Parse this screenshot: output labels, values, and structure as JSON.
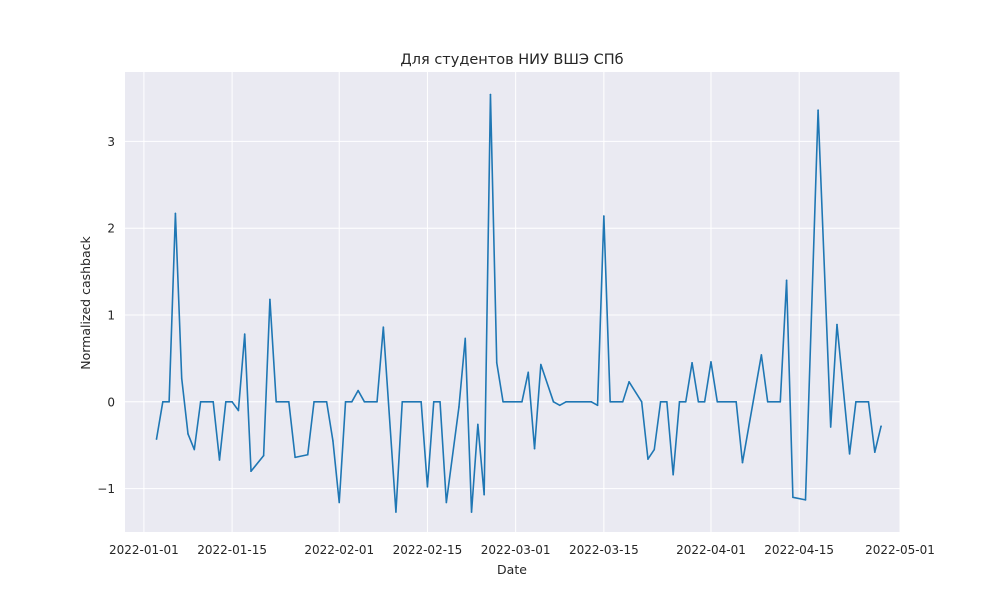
{
  "chart_data": {
    "type": "line",
    "title": "Для студентов НИУ ВШЭ СПб",
    "xlabel": "Date",
    "ylabel": "Normalized cashback",
    "x_ticks": [
      "2022-01-01",
      "2022-01-15",
      "2022-02-01",
      "2022-02-15",
      "2022-03-01",
      "2022-03-15",
      "2022-04-01",
      "2022-04-15",
      "2022-05-01"
    ],
    "y_ticks": [
      3,
      2,
      1,
      0,
      -1
    ],
    "y_tick_labels": [
      "3",
      "2",
      "1",
      "0",
      "−1"
    ],
    "xlim": [
      "2021-12-29",
      "2022-05-01"
    ],
    "ylim": [
      -1.5,
      3.8
    ],
    "grid": true,
    "background_color": "#eaeaf2",
    "grid_color": "#ffffff",
    "line_color": "#1f77b4",
    "series": [
      {
        "points": [
          [
            "2022-01-03",
            -0.43
          ],
          [
            "2022-01-04",
            0.0
          ],
          [
            "2022-01-05",
            0.0
          ],
          [
            "2022-01-06",
            2.17
          ],
          [
            "2022-01-07",
            0.27
          ],
          [
            "2022-01-08",
            -0.37
          ],
          [
            "2022-01-09",
            -0.55
          ],
          [
            "2022-01-10",
            0.0
          ],
          [
            "2022-01-11",
            0.0
          ],
          [
            "2022-01-12",
            0.0
          ],
          [
            "2022-01-13",
            -0.67
          ],
          [
            "2022-01-14",
            0.0
          ],
          [
            "2022-01-15",
            0.0
          ],
          [
            "2022-01-16",
            -0.1
          ],
          [
            "2022-01-17",
            0.78
          ],
          [
            "2022-01-18",
            -0.8
          ],
          [
            "2022-01-20",
            -0.62
          ],
          [
            "2022-01-21",
            1.18
          ],
          [
            "2022-01-22",
            0.0
          ],
          [
            "2022-01-24",
            0.0
          ],
          [
            "2022-01-25",
            -0.64
          ],
          [
            "2022-01-27",
            -0.61
          ],
          [
            "2022-01-28",
            0.0
          ],
          [
            "2022-01-30",
            0.0
          ],
          [
            "2022-01-31",
            -0.45
          ],
          [
            "2022-02-01",
            -1.16
          ],
          [
            "2022-02-02",
            0.0
          ],
          [
            "2022-02-03",
            0.0
          ],
          [
            "2022-02-04",
            0.13
          ],
          [
            "2022-02-05",
            0.0
          ],
          [
            "2022-02-07",
            0.0
          ],
          [
            "2022-02-08",
            0.86
          ],
          [
            "2022-02-10",
            -1.27
          ],
          [
            "2022-02-11",
            0.0
          ],
          [
            "2022-02-14",
            0.0
          ],
          [
            "2022-02-15",
            -0.98
          ],
          [
            "2022-02-16",
            0.0
          ],
          [
            "2022-02-17",
            0.0
          ],
          [
            "2022-02-18",
            -1.16
          ],
          [
            "2022-02-20",
            -0.06
          ],
          [
            "2022-02-21",
            0.73
          ],
          [
            "2022-02-22",
            -1.27
          ],
          [
            "2022-02-23",
            -0.26
          ],
          [
            "2022-02-24",
            -1.07
          ],
          [
            "2022-02-25",
            3.54
          ],
          [
            "2022-02-26",
            0.45
          ],
          [
            "2022-02-27",
            0.0
          ],
          [
            "2022-03-02",
            0.0
          ],
          [
            "2022-03-03",
            0.34
          ],
          [
            "2022-03-04",
            -0.54
          ],
          [
            "2022-03-05",
            0.43
          ],
          [
            "2022-03-07",
            0.0
          ],
          [
            "2022-03-08",
            -0.04
          ],
          [
            "2022-03-09",
            0.0
          ],
          [
            "2022-03-13",
            0.0
          ],
          [
            "2022-03-14",
            -0.04
          ],
          [
            "2022-03-15",
            2.14
          ],
          [
            "2022-03-16",
            0.0
          ],
          [
            "2022-03-18",
            0.0
          ],
          [
            "2022-03-19",
            0.23
          ],
          [
            "2022-03-21",
            0.0
          ],
          [
            "2022-03-22",
            -0.66
          ],
          [
            "2022-03-23",
            -0.55
          ],
          [
            "2022-03-24",
            0.0
          ],
          [
            "2022-03-25",
            0.0
          ],
          [
            "2022-03-26",
            -0.84
          ],
          [
            "2022-03-27",
            0.0
          ],
          [
            "2022-03-28",
            0.0
          ],
          [
            "2022-03-29",
            0.45
          ],
          [
            "2022-03-30",
            0.0
          ],
          [
            "2022-03-31",
            0.0
          ],
          [
            "2022-04-01",
            0.46
          ],
          [
            "2022-04-02",
            0.0
          ],
          [
            "2022-04-05",
            0.0
          ],
          [
            "2022-04-06",
            -0.7
          ],
          [
            "2022-04-09",
            0.54
          ],
          [
            "2022-04-10",
            0.0
          ],
          [
            "2022-04-12",
            0.0
          ],
          [
            "2022-04-13",
            1.4
          ],
          [
            "2022-04-14",
            -1.1
          ],
          [
            "2022-04-16",
            -1.13
          ],
          [
            "2022-04-18",
            3.36
          ],
          [
            "2022-04-20",
            -0.29
          ],
          [
            "2022-04-21",
            0.89
          ],
          [
            "2022-04-23",
            -0.6
          ],
          [
            "2022-04-24",
            0.0
          ],
          [
            "2022-04-26",
            0.0
          ],
          [
            "2022-04-27",
            -0.58
          ],
          [
            "2022-04-28",
            -0.28
          ]
        ]
      }
    ]
  }
}
